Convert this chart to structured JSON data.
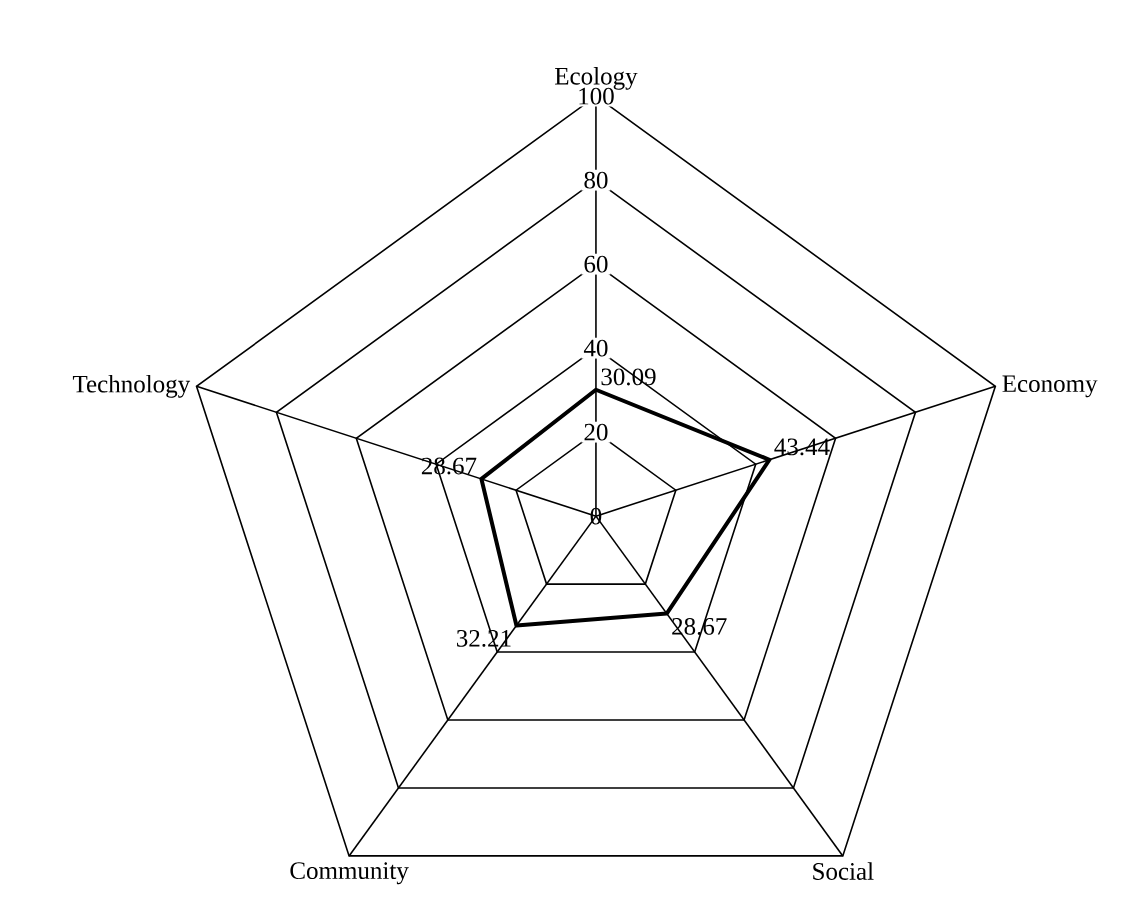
{
  "chart_data": {
    "type": "radar",
    "categories": [
      "Ecology",
      "Economy",
      "Social",
      "Community",
      "Technology"
    ],
    "series": [
      {
        "color": "#000000",
        "values": [
          30.09,
          43.44,
          28.67,
          32.21,
          28.67
        ]
      }
    ],
    "ylim": [
      0,
      100
    ],
    "yticks": [
      0,
      20,
      40,
      60,
      80,
      100
    ],
    "grid": true,
    "data_labels": true
  }
}
